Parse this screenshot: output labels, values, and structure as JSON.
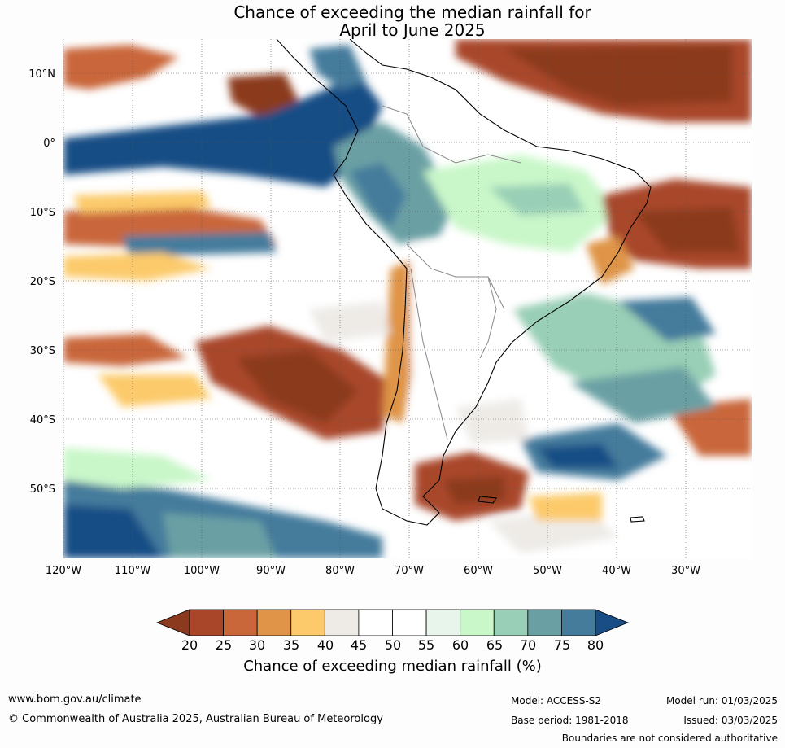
{
  "title_line1": "Chance of exceeding the median rainfall for",
  "title_line2": "April to June 2025",
  "lat_labels": [
    "10°N",
    "0°",
    "10°S",
    "20°S",
    "30°S",
    "40°S",
    "50°S"
  ],
  "lon_labels": [
    "120°W",
    "110°W",
    "100°W",
    "90°W",
    "80°W",
    "70°W",
    "60°W",
    "50°W",
    "40°W",
    "30°W"
  ],
  "colorbar": {
    "ticks": [
      "20",
      "25",
      "30",
      "35",
      "40",
      "45",
      "50",
      "55",
      "60",
      "65",
      "70",
      "75",
      "80"
    ],
    "colors": [
      "#8b3a1e",
      "#a9462a",
      "#c9663a",
      "#df9447",
      "#fcca6a",
      "#eeebe7",
      "#ffffff",
      "#ffffff",
      "#e8f5ea",
      "#c9f7c9",
      "#99cfb6",
      "#6aa0a4",
      "#457c9c",
      "#184e85"
    ],
    "title": "Chance of exceeding median rainfall (%)"
  },
  "footer": {
    "website": "www.bom.gov.au/climate",
    "copyright": "© Commonwealth of Australia 2025, Australian Bureau of Meteorology",
    "model": "Model: ACCESS-S2",
    "model_run": "Model run: 01/03/2025",
    "base_period": "Base period: 1981-2018",
    "issued": "Issued: 03/03/2025",
    "disclaimer": "Boundaries are not considered authoritative"
  }
}
